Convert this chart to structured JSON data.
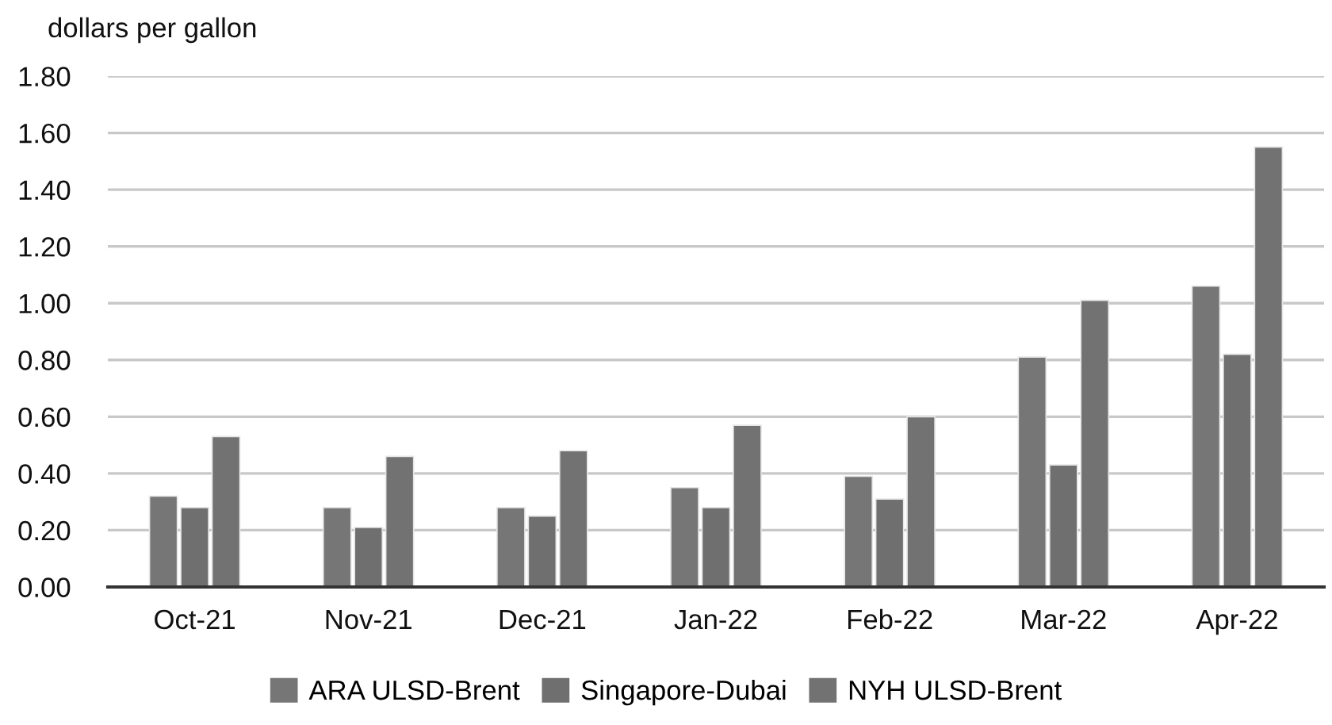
{
  "chart_data": {
    "type": "bar",
    "ylabel": "dollars per gallon",
    "categories": [
      "Oct-21",
      "Nov-21",
      "Dec-21",
      "Jan-22",
      "Feb-22",
      "Mar-22",
      "Apr-22"
    ],
    "series": [
      {
        "name": "ARA ULSD-Brent",
        "color": "#767676",
        "values": [
          0.32,
          0.28,
          0.28,
          0.35,
          0.39,
          0.81,
          1.06
        ]
      },
      {
        "name": "Singapore-Dubai",
        "color": "#6f6f6f",
        "values": [
          0.28,
          0.21,
          0.25,
          0.28,
          0.31,
          0.43,
          0.82
        ]
      },
      {
        "name": "NYH ULSD-Brent",
        "color": "#727272",
        "values": [
          0.53,
          0.46,
          0.48,
          0.57,
          0.6,
          1.01,
          1.55
        ]
      }
    ],
    "ylim": [
      0,
      1.8
    ],
    "yticks": [
      {
        "value": 0,
        "label": "0.00"
      },
      {
        "value": 0.2,
        "label": "0.20"
      },
      {
        "value": 0.4,
        "label": "0.40"
      },
      {
        "value": 0.6,
        "label": "0.60"
      },
      {
        "value": 0.8,
        "label": "0.80"
      },
      {
        "value": 1.0,
        "label": "1.00"
      },
      {
        "value": 1.2,
        "label": "1.20"
      },
      {
        "value": 1.4,
        "label": "1.40"
      },
      {
        "value": 1.6,
        "label": "1.60"
      },
      {
        "value": 1.8,
        "label": "1.80"
      }
    ],
    "grid": "y",
    "legend": "bottom"
  }
}
